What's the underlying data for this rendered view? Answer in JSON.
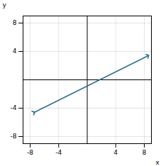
{
  "chart_data": {
    "type": "line",
    "xlabel": "x",
    "ylabel": "y",
    "x": [
      -7.5,
      8.5
    ],
    "values": [
      -4.625,
      3.375
    ],
    "color": "#2e6f8e",
    "marker": "arrow",
    "xlim": [
      -9,
      9
    ],
    "ylim": [
      -9,
      9
    ],
    "xticks": [
      -8,
      -4,
      4,
      8
    ],
    "yticks": [
      -8,
      -4,
      4,
      8
    ],
    "grid": true
  }
}
